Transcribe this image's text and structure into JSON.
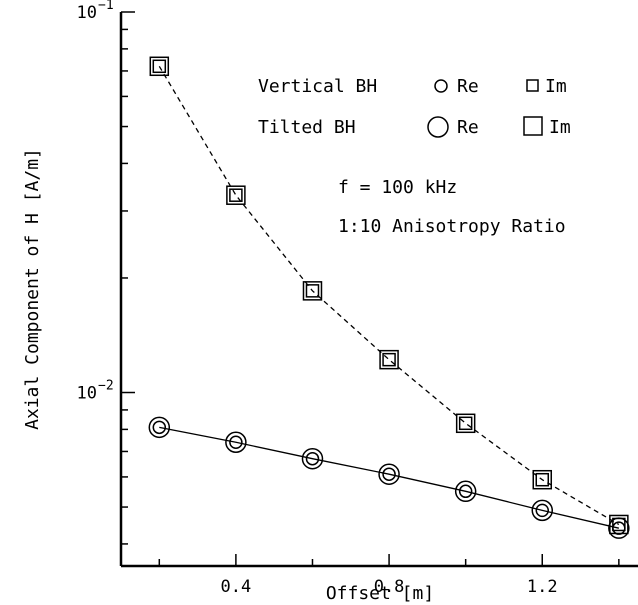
{
  "chart_data": {
    "type": "line",
    "xlabel": "Offset [m]",
    "ylabel": "Axial Component of H [A/m]",
    "xlim": [
      0.1,
      1.45
    ],
    "ylim": [
      0.0035,
      0.1
    ],
    "yscale": "log",
    "grid": false,
    "x_ticks": [
      {
        "value": 0.4,
        "label": "0.4"
      },
      {
        "value": 0.8,
        "label": "0.8"
      },
      {
        "value": 1.2,
        "label": "1.2"
      }
    ],
    "y_ticks": [
      {
        "value": 0.1,
        "base": "10",
        "exp": "−1"
      },
      {
        "value": 0.01,
        "base": "10",
        "exp": "−2"
      }
    ],
    "x_minor_ticks": [
      0.2,
      0.6,
      1.0,
      1.4
    ],
    "series": [
      {
        "name": "Vertical BH Re",
        "marker": "circle-small",
        "line": "solid",
        "x": [
          0.2,
          0.4,
          0.6,
          0.8,
          1.0,
          1.2,
          1.4
        ],
        "y": [
          0.0081,
          0.0074,
          0.0067,
          0.0061,
          0.0055,
          0.0049,
          0.0044
        ]
      },
      {
        "name": "Tilted BH Re",
        "marker": "circle-large",
        "line": "none",
        "x": [
          0.2,
          0.4,
          0.6,
          0.8,
          1.0,
          1.2,
          1.4
        ],
        "y": [
          0.0081,
          0.0074,
          0.0067,
          0.0061,
          0.0055,
          0.0049,
          0.0044
        ]
      },
      {
        "name": "Vertical BH Im",
        "marker": "square-small",
        "line": "dashed",
        "x": [
          0.2,
          0.4,
          0.6,
          0.8,
          1.0,
          1.2,
          1.4
        ],
        "y": [
          0.072,
          0.033,
          0.0185,
          0.0122,
          0.0083,
          0.0059,
          0.0045
        ]
      },
      {
        "name": "Tilted BH Im",
        "marker": "square-large",
        "line": "none",
        "x": [
          0.2,
          0.4,
          0.6,
          0.8,
          1.0,
          1.2,
          1.4
        ],
        "y": [
          0.072,
          0.033,
          0.0185,
          0.0122,
          0.0083,
          0.0059,
          0.0045
        ]
      }
    ],
    "legend": {
      "placement": "top-right",
      "rows": [
        {
          "label": "Vertical BH",
          "re_label": "Re",
          "im_label": "Im",
          "size": "small"
        },
        {
          "label": "Tilted BH",
          "re_label": "Re",
          "im_label": "Im",
          "size": "large"
        }
      ]
    },
    "annotations": [
      "f = 100 kHz",
      "1:10 Anisotropy Ratio"
    ]
  }
}
